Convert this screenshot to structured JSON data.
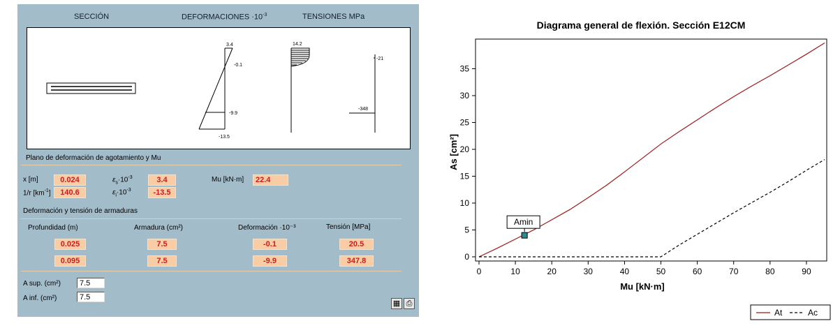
{
  "section_panel": {
    "headers": {
      "seccion": "SECCIÓN",
      "deformaciones": "DEFORMACIONES ·10",
      "deformaciones_exp": "-3",
      "tensiones": "TENSIONES MPa"
    },
    "diagram_labels": {
      "strain_top": "3.4",
      "strain_neutral": "-0.1",
      "strain_steel_low": "-9.9",
      "strain_bottom": "-13.5",
      "stress_concrete": "14.2",
      "stress_steel_top": "-21",
      "stress_steel_bottom": "-348"
    },
    "plane_title": "Plano de deformación de agotamiento y Mu",
    "x_label": "x [m]",
    "x_value": "0.024",
    "curv_label_pre": "1/r [km",
    "curv_label_sup": "-1",
    "curv_label_post": "]",
    "curv_value": "140.6",
    "eps_s_label": "ε",
    "eps_s_sub": "s",
    "eps_s_suffix": "·10",
    "eps_s_exp": "-3",
    "eps_s_value": "3.4",
    "eps_i_label": "ε",
    "eps_i_sub": "i",
    "eps_i_suffix": "·10",
    "eps_i_exp": "-3",
    "eps_i_value": "-13.5",
    "mu_label": "Mu [kN·m]",
    "mu_value": "22.4",
    "rebar_title": "Deformación y tensión de armaduras",
    "col_profundidad": "Profundidad (m)",
    "col_armadura": "Armadura (cm²)",
    "col_deformacion": "Deformación ·10⁻³",
    "col_tension": "Tensión [MPa]",
    "rows": [
      {
        "depth": "0.025",
        "area": "7.5",
        "strain": "-0.1",
        "stress": "20.5"
      },
      {
        "depth": "0.095",
        "area": "7.5",
        "strain": "-9.9",
        "stress": "347.8"
      }
    ],
    "a_sup_label": "A sup. (cm²)",
    "a_sup_value": "7.5",
    "a_inf_label": "A inf.  (cm²)",
    "a_inf_value": "7.5",
    "calc_icon": "calculator-icon",
    "print_icon": "printer-icon"
  },
  "chart_data": {
    "type": "line",
    "title": "Diagrama general de flexión. Sección E12CM",
    "xlabel": "Mu [kN·m]",
    "ylabel": "As [cm²]",
    "xlim": [
      0,
      95
    ],
    "ylim": [
      0,
      40
    ],
    "x_ticks": [
      0,
      10,
      20,
      30,
      40,
      50,
      60,
      70,
      80,
      90
    ],
    "y_ticks": [
      0,
      5,
      10,
      15,
      20,
      25,
      30,
      35
    ],
    "grid": false,
    "legend_position": "bottom-right",
    "series": [
      {
        "name": "At",
        "style": "solid",
        "color": "#a01818",
        "x": [
          0,
          5,
          10,
          15,
          20,
          25,
          30,
          35,
          40,
          45,
          50,
          55,
          60,
          65,
          70,
          75,
          80,
          85,
          90,
          95
        ],
        "y": [
          0,
          1.6,
          3.3,
          5.0,
          6.9,
          8.8,
          11.0,
          13.3,
          15.8,
          18.4,
          21.0,
          23.3,
          25.5,
          27.7,
          29.8,
          31.8,
          33.7,
          35.7,
          37.7,
          39.8
        ]
      },
      {
        "name": "Ac",
        "style": "dashed",
        "color": "#000000",
        "x": [
          0,
          50,
          55,
          60,
          65,
          70,
          75,
          80,
          85,
          90,
          95
        ],
        "y": [
          0,
          0,
          2.2,
          4.2,
          6.2,
          8.2,
          10.1,
          12.0,
          14.0,
          16.1,
          18.1
        ]
      }
    ],
    "annotations": [
      {
        "text": "Amin",
        "x": 12.5,
        "y": 4.0
      }
    ]
  }
}
